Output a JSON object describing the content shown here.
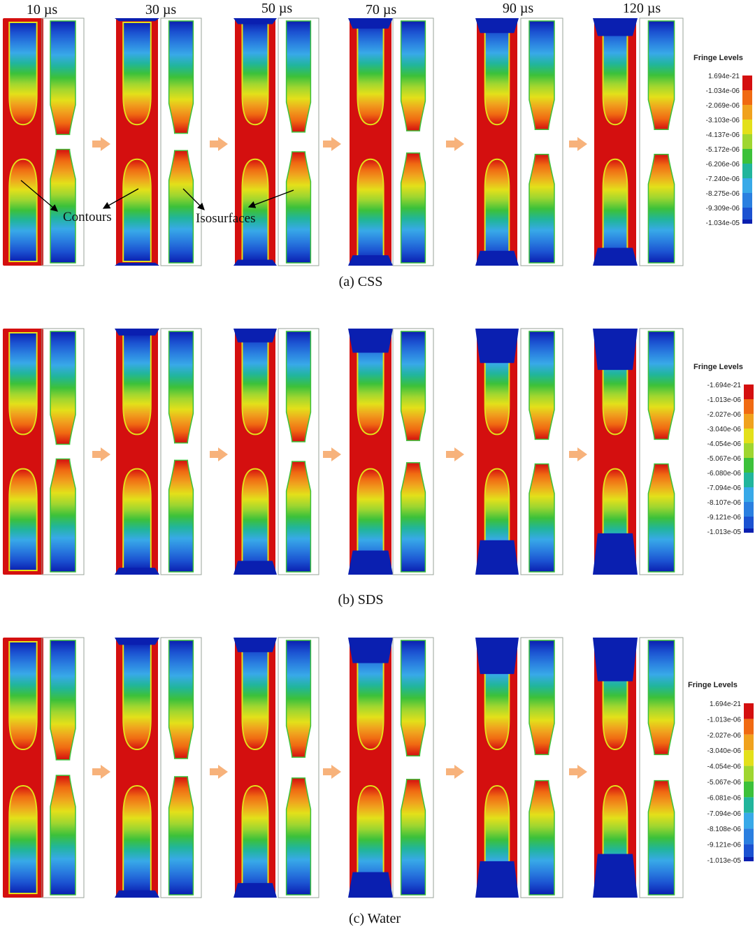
{
  "time_labels": [
    "10 µs",
    "30 µs",
    "50 µs",
    "70 µs",
    "90 µs",
    "120 µs"
  ],
  "annotations": {
    "contours": "Contours",
    "isosurfaces": "Isosurfaces"
  },
  "colors": {
    "arrow": "#f7b27b",
    "ramp": [
      "#d40f0f",
      "#f06a12",
      "#f0a21e",
      "#e3e01a",
      "#9fd630",
      "#3cc13a",
      "#21b59c",
      "#38a9e8",
      "#2a7fe0",
      "#1b52d1",
      "#0a1fb0"
    ]
  },
  "panels": [
    {
      "caption": "(a) CSS",
      "legend": {
        "title": "Fringe Levels",
        "levels": [
          "1.694e-21",
          "-1.034e-06",
          "-2.069e-06",
          "-3.103e-06",
          "-4.137e-06",
          "-5.172e-06",
          "-6.206e-06",
          "-7.240e-06",
          "-8.275e-06",
          "-9.309e-06",
          "-1.034e-05"
        ]
      }
    },
    {
      "caption": "(b) SDS",
      "legend": {
        "title": "Fringe Levels",
        "levels": [
          "-1.694e-21",
          "-1.013e-06",
          "-2.027e-06",
          "-3.040e-06",
          "-4.054e-06",
          "-5.067e-06",
          "-6.080e-06",
          "-7.094e-06",
          "-8.107e-06",
          "-9.121e-06",
          "-1.013e-05"
        ]
      }
    },
    {
      "caption": "(c) Water",
      "legend": {
        "title": "Fringe Levels",
        "levels": [
          "1.694e-21",
          "-1.013e-06",
          "-2.027e-06",
          "-3.040e-06",
          "-4.054e-06",
          "-5.067e-06",
          "-6.081e-06",
          "-7.094e-06",
          "-8.108e-06",
          "-9.121e-06",
          "-1.013e-05"
        ]
      }
    }
  ]
}
